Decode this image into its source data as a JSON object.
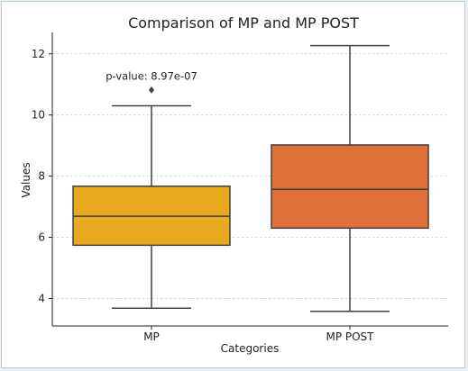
{
  "chart_data": {
    "type": "box",
    "title": "Comparison of MP and MP POST",
    "xlabel": "Categories",
    "ylabel": "Values",
    "categories": [
      "MP",
      "MP POST"
    ],
    "ylim": [
      3.1,
      12.7
    ],
    "yticks": [
      4,
      6,
      8,
      10,
      12
    ],
    "grid": true,
    "series": [
      {
        "category": "MP",
        "whisker_low": 3.68,
        "q1": 5.74,
        "median": 6.69,
        "q3": 7.67,
        "whisker_high": 10.3,
        "outliers": [
          10.82
        ],
        "color": "#e8a820"
      },
      {
        "category": "MP POST",
        "whisker_low": 3.58,
        "q1": 6.3,
        "median": 7.57,
        "q3": 9.02,
        "whisker_high": 12.27,
        "outliers": [],
        "color": "#e0703a"
      }
    ],
    "annotation": {
      "text": "p-value: 8.97e-07",
      "x_category": "MP",
      "y": 11.15
    }
  },
  "colors": {
    "line": "#404040",
    "grid": "#cccccc",
    "frame_border": "#b9ccd8"
  }
}
